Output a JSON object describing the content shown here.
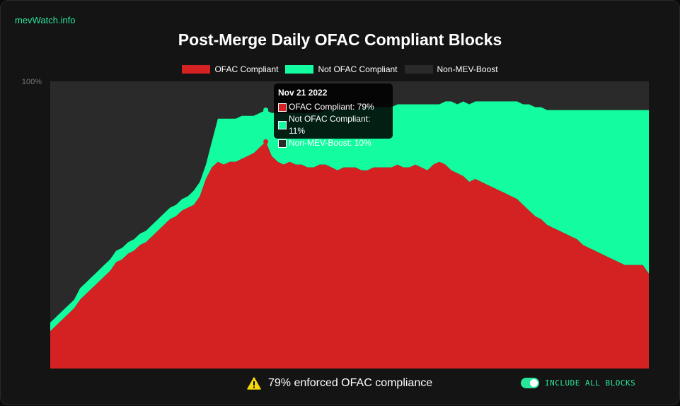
{
  "brand": "mevWatch.info",
  "colors": {
    "ofac": "#d42222",
    "not_ofac": "#14fca0",
    "non_mev": "#2a2a2a",
    "accent": "#29e59a"
  },
  "tooltip": {
    "date": "Nov 21 2022",
    "rows": [
      "OFAC Compliant: 79%",
      "Not OFAC Compliant: 11%",
      "Non-MEV-Boost: 10%"
    ]
  },
  "footer": {
    "warning_icon": "warning-icon",
    "message": "79% enforced OFAC compliance",
    "toggle_label": "INCLUDE ALL BLOCKS",
    "toggle_on": true
  },
  "chart_data": {
    "type": "area",
    "stacked": true,
    "title": "Post-Merge Daily OFAC Compliant Blocks",
    "ylim": [
      0,
      100
    ],
    "y_tick_labels": [
      "100%"
    ],
    "legend": [
      "OFAC Compliant",
      "Not OFAC Compliant",
      "Non-MEV-Boost"
    ],
    "legend_position": "top-center",
    "x_index_range": [
      0,
      100
    ],
    "highlight_index": 36,
    "series": [
      {
        "name": "OFAC Compliant",
        "color": "#d42222",
        "values": [
          13,
          15,
          17,
          19,
          21,
          24,
          26,
          28,
          30,
          32,
          34,
          37,
          38,
          40,
          41,
          43,
          44,
          46,
          48,
          50,
          52,
          53,
          55,
          56,
          57,
          60,
          66,
          70,
          72,
          71,
          72,
          72,
          73,
          74,
          75,
          77,
          79,
          74,
          72,
          71,
          72,
          71,
          71,
          70,
          70,
          71,
          71,
          70,
          69,
          70,
          70,
          70,
          69,
          69,
          70,
          70,
          70,
          70,
          71,
          70,
          70,
          71,
          70,
          69,
          71,
          72,
          71,
          69,
          68,
          67,
          65,
          66,
          65,
          64,
          63,
          62,
          61,
          60,
          59,
          57,
          55,
          53,
          52,
          50,
          49,
          48,
          47,
          46,
          45,
          43,
          42,
          41,
          40,
          39,
          38,
          37,
          36,
          36,
          36,
          36,
          33
        ]
      },
      {
        "name": "Not OFAC Compliant",
        "color": "#14fca0",
        "values": [
          3,
          3,
          3,
          3,
          3,
          4,
          4,
          4,
          4,
          4,
          4,
          4,
          4,
          4,
          4,
          4,
          4,
          4,
          4,
          4,
          4,
          4,
          4,
          4,
          5,
          5,
          5,
          9,
          15,
          16,
          15,
          15,
          15,
          14,
          13,
          12,
          11,
          15,
          17,
          18,
          17,
          18,
          18,
          19,
          19,
          18,
          19,
          20,
          21,
          20,
          20,
          20,
          22,
          22,
          21,
          21,
          21,
          21,
          21,
          22,
          22,
          21,
          22,
          23,
          21,
          20,
          22,
          24,
          24,
          26,
          27,
          27,
          28,
          29,
          30,
          31,
          32,
          33,
          34,
          35,
          37,
          38,
          39,
          40,
          41,
          42,
          43,
          44,
          45,
          47,
          48,
          49,
          50,
          51,
          52,
          53,
          54,
          54,
          54,
          54,
          57
        ]
      },
      {
        "name": "Non-MEV-Boost",
        "color": "#2a2a2a",
        "values": [
          84,
          82,
          80,
          78,
          76,
          72,
          70,
          68,
          66,
          64,
          62,
          59,
          58,
          56,
          55,
          53,
          52,
          50,
          48,
          46,
          44,
          43,
          41,
          40,
          38,
          35,
          29,
          21,
          13,
          13,
          13,
          13,
          12,
          12,
          12,
          11,
          10,
          11,
          11,
          11,
          11,
          11,
          11,
          11,
          11,
          11,
          10,
          10,
          10,
          10,
          10,
          10,
          9,
          9,
          9,
          9,
          9,
          9,
          8,
          8,
          8,
          8,
          8,
          8,
          8,
          8,
          7,
          7,
          8,
          7,
          8,
          7,
          7,
          7,
          7,
          7,
          7,
          7,
          7,
          8,
          8,
          9,
          9,
          10,
          10,
          10,
          10,
          10,
          10,
          10,
          10,
          10,
          10,
          10,
          10,
          10,
          10,
          10,
          10,
          10,
          10
        ]
      }
    ]
  }
}
